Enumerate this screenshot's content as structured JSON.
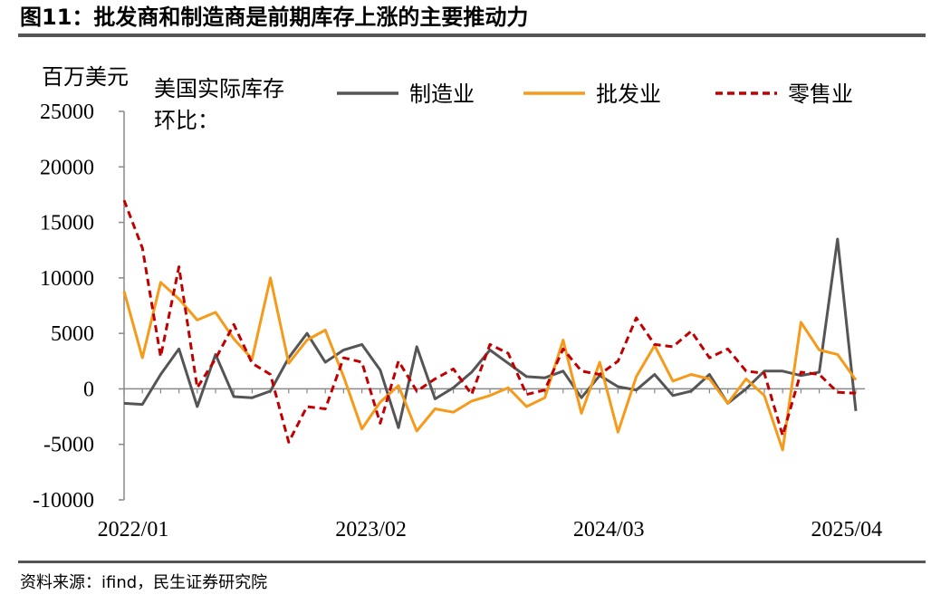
{
  "header": {
    "figure_title": "图11：批发商和制造商是前期库存上涨的主要推动力"
  },
  "footer": {
    "source": "资料来源：ifind，民生证券研究院"
  },
  "chart_data": {
    "type": "line",
    "y_unit_label": "百万美元",
    "title_line1": "美国实际库存",
    "title_line2": "环比：",
    "ylim": [
      -10000,
      25000
    ],
    "y_ticks": [
      -10000,
      -5000,
      0,
      5000,
      10000,
      15000,
      20000,
      25000
    ],
    "y_tick_labels": [
      "-10000",
      "-5000",
      "0",
      "5000",
      "10000",
      "15000",
      "20000",
      "25000"
    ],
    "x_tick_labels": [
      "2022/01",
      "2023/02",
      "2024/03",
      "2025/04"
    ],
    "x_tick_indices": [
      0,
      13,
      26,
      39
    ],
    "grid": false,
    "legend_position": "top",
    "series": [
      {
        "name": "制造业",
        "color": "#555555",
        "style": "solid",
        "values": [
          -1300,
          -1400,
          1300,
          3600,
          -1600,
          3100,
          -700,
          -800,
          -200,
          2800,
          5000,
          2400,
          3500,
          4000,
          1700,
          -3500,
          3800,
          -900,
          100,
          1500,
          3500,
          2300,
          1100,
          1000,
          1600,
          -800,
          1200,
          200,
          -100,
          1300,
          -600,
          -200,
          1300,
          -1300,
          0,
          1600,
          1600,
          1200,
          1500,
          13500,
          -2000
        ]
      },
      {
        "name": "批发业",
        "color": "#f59a1b",
        "style": "solid",
        "values": [
          8800,
          2800,
          9600,
          8100,
          6200,
          6900,
          4500,
          2700,
          10000,
          2300,
          4400,
          5300,
          1100,
          -3600,
          -1200,
          300,
          -3800,
          -1800,
          -2100,
          -1100,
          -600,
          100,
          -1600,
          -800,
          4400,
          -2200,
          2400,
          -3900,
          1100,
          3900,
          700,
          1300,
          900,
          -1300,
          900,
          -600,
          -5500,
          6000,
          3500,
          3100,
          800
        ]
      },
      {
        "name": "零售业",
        "color": "#c00000",
        "style": "dashed",
        "values": [
          17000,
          12700,
          2900,
          11000,
          100,
          2700,
          5800,
          2300,
          1300,
          -4800,
          -1600,
          -1800,
          2800,
          2400,
          -3100,
          2500,
          -200,
          900,
          1800,
          -500,
          4000,
          3200,
          -500,
          -100,
          3600,
          1600,
          1300,
          2500,
          6400,
          4000,
          3800,
          5200,
          2800,
          3600,
          1600,
          1400,
          -4200,
          1500,
          1300,
          -300,
          -400
        ]
      }
    ]
  }
}
